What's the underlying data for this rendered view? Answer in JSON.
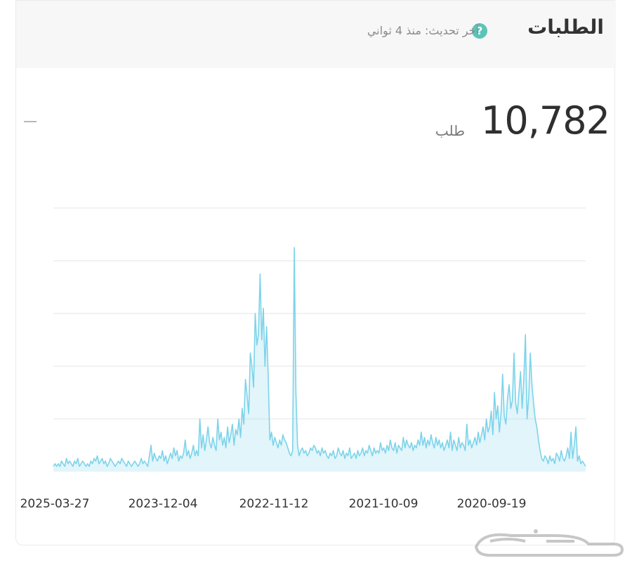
{
  "header": {
    "title": "الطلبات",
    "help_icon": "question-circle-icon",
    "last_update": "آخر تحديث: منذ 4 ثواني"
  },
  "summary": {
    "total": "10,782",
    "unit": "طلب"
  },
  "colors": {
    "line": "#7dd3ea",
    "area": "#a8e3f2",
    "grid": "#e9e9e9",
    "accent": "#5bc4b8"
  },
  "chart_data": {
    "type": "area",
    "title": "",
    "xlabel": "",
    "ylabel": "",
    "x_ticks": [
      "2025-03-27",
      "2023-12-04",
      "2022-11-12",
      "2021-10-09",
      "2020-09-19"
    ],
    "x_direction": "reversed",
    "y_axis_labels": "none",
    "grid": true,
    "gridline_count": 5,
    "ylim": [
      0,
      100
    ],
    "series": [
      {
        "values": [
          2,
          3,
          2,
          3,
          2,
          4,
          3,
          2,
          5,
          3,
          4,
          3,
          2,
          4,
          3,
          5,
          2,
          3,
          4,
          3,
          2,
          3,
          2,
          4,
          3,
          5,
          4,
          6,
          3,
          4,
          5,
          3,
          4,
          2,
          3,
          5,
          4,
          3,
          2,
          3,
          4,
          3,
          5,
          4,
          3,
          2,
          4,
          3,
          2,
          3,
          4,
          3,
          2,
          3,
          5,
          3,
          4,
          3,
          2,
          6,
          10,
          4,
          7,
          5,
          4,
          6,
          5,
          8,
          4,
          6,
          3,
          5,
          7,
          5,
          9,
          6,
          8,
          4,
          6,
          5,
          7,
          12,
          6,
          8,
          5,
          7,
          10,
          6,
          8,
          6,
          20,
          9,
          14,
          8,
          12,
          17,
          11,
          9,
          13,
          10,
          8,
          20,
          12,
          15,
          10,
          13,
          9,
          17,
          11,
          14,
          18,
          10,
          16,
          14,
          20,
          13,
          24,
          18,
          35,
          29,
          22,
          45,
          40,
          32,
          60,
          48,
          52,
          75,
          50,
          62,
          40,
          55,
          36,
          12,
          15,
          10,
          13,
          11,
          9,
          12,
          10,
          14,
          12,
          11,
          9,
          7,
          6,
          8,
          85,
          30,
          10,
          6,
          8,
          9,
          7,
          8,
          6,
          7,
          9,
          8,
          10,
          9,
          7,
          8,
          6,
          9,
          7,
          8,
          6,
          5,
          7,
          6,
          8,
          5,
          6,
          9,
          7,
          6,
          8,
          5,
          7,
          6,
          9,
          5,
          6,
          7,
          5,
          8,
          6,
          7,
          9,
          6,
          8,
          7,
          10,
          8,
          6,
          9,
          7,
          8,
          7,
          11,
          8,
          9,
          7,
          10,
          8,
          12,
          9,
          8,
          11,
          7,
          10,
          9,
          8,
          13,
          9,
          12,
          10,
          9,
          11,
          8,
          10,
          9,
          12,
          10,
          15,
          10,
          13,
          9,
          12,
          10,
          14,
          11,
          9,
          13,
          10,
          12,
          9,
          11,
          8,
          10,
          12,
          9,
          15,
          8,
          12,
          10,
          8,
          13,
          9,
          11,
          10,
          8,
          18,
          10,
          12,
          9,
          11,
          13,
          10,
          15,
          11,
          14,
          17,
          12,
          20,
          15,
          17,
          23,
          14,
          30,
          20,
          25,
          15,
          22,
          37,
          21,
          18,
          28,
          33,
          24,
          27,
          45,
          26,
          22,
          30,
          38,
          24,
          35,
          52,
          20,
          28,
          45,
          33,
          26,
          20,
          17,
          12,
          8,
          5,
          4,
          6,
          5,
          3,
          6,
          4,
          5,
          3,
          7,
          6,
          4,
          8,
          5,
          4,
          6,
          9,
          5,
          15,
          5,
          10,
          17,
          4,
          6,
          3,
          4,
          3,
          2
        ]
      }
    ]
  },
  "watermark": {
    "icon": "haraj-logo-icon"
  }
}
